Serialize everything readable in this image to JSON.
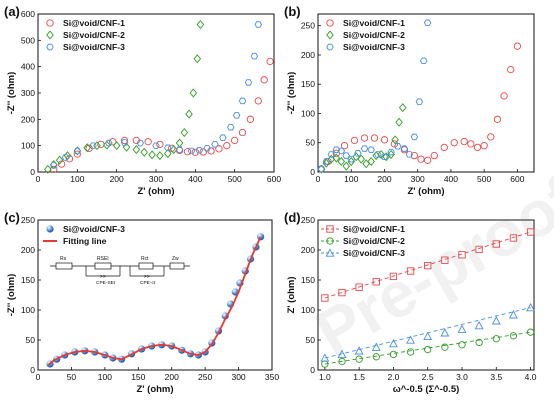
{
  "watermark": "Pre-proofs",
  "colors": {
    "red": "#e8474a",
    "green": "#2e9e22",
    "blue": "#4a90e2",
    "fit": "#e53935",
    "sphere": "#3c78c8"
  },
  "chart_data": [
    {
      "panel": "a",
      "panel_label": "(a)",
      "type": "scatter",
      "xlabel": "Z' (ohm)",
      "ylabel": "-Z'' (ohm)",
      "xlim": [
        0,
        600
      ],
      "ylim": [
        0,
        600
      ],
      "xticks": [
        0,
        100,
        200,
        300,
        400,
        500,
        600
      ],
      "yticks": [
        0,
        100,
        200,
        300,
        400,
        500,
        600
      ],
      "legend": "top-left",
      "series": [
        {
          "name": "Si@void/CNF-1",
          "marker": "circle",
          "color": "#e8474a",
          "x": [
            40,
            60,
            80,
            100,
            130,
            160,
            190,
            220,
            250,
            280,
            310,
            340,
            360,
            380,
            400,
            420,
            440,
            460,
            480,
            500,
            520,
            540,
            560,
            575,
            590
          ],
          "y": [
            10,
            30,
            50,
            68,
            90,
            105,
            115,
            120,
            120,
            115,
            105,
            90,
            82,
            77,
            75,
            76,
            80,
            88,
            100,
            120,
            150,
            200,
            270,
            350,
            420
          ]
        },
        {
          "name": "Si@void/CNF-2",
          "marker": "diamond",
          "color": "#2e9e22",
          "x": [
            25,
            40,
            55,
            75,
            100,
            125,
            150,
            175,
            200,
            225,
            250,
            270,
            290,
            310,
            330,
            345,
            360,
            372,
            384,
            395,
            405,
            413
          ],
          "y": [
            10,
            28,
            45,
            62,
            80,
            92,
            100,
            102,
            100,
            94,
            85,
            75,
            65,
            62,
            70,
            85,
            110,
            150,
            220,
            300,
            430,
            560
          ]
        },
        {
          "name": "Si@void/CNF-3",
          "marker": "hexagon",
          "color": "#4a90e2",
          "x": [
            40,
            70,
            100,
            140,
            180,
            220,
            260,
            300,
            330,
            360,
            390,
            410,
            430,
            450,
            470,
            490,
            505,
            520,
            535,
            550,
            560
          ],
          "y": [
            25,
            55,
            80,
            100,
            110,
            112,
            110,
            100,
            92,
            85,
            80,
            82,
            90,
            105,
            130,
            170,
            215,
            270,
            340,
            440,
            560
          ]
        }
      ]
    },
    {
      "panel": "b",
      "panel_label": "(b)",
      "type": "scatter",
      "xlabel": "Z' (ohm)",
      "ylabel": "-Z'' (ohm)",
      "xlim": [
        0,
        650
      ],
      "ylim": [
        0,
        270
      ],
      "xticks": [
        0,
        100,
        200,
        300,
        400,
        500,
        600
      ],
      "yticks": [
        0,
        50,
        100,
        150,
        200,
        250
      ],
      "legend": "top-left",
      "series": [
        {
          "name": "Si@void/CNF-1",
          "marker": "circle",
          "color": "#e8474a",
          "x": [
            10,
            30,
            55,
            80,
            110,
            140,
            170,
            200,
            230,
            260,
            290,
            310,
            330,
            350,
            380,
            410,
            440,
            460,
            480,
            500,
            520,
            540,
            560,
            580,
            600
          ],
          "y": [
            5,
            18,
            32,
            45,
            54,
            58,
            58,
            55,
            48,
            38,
            28,
            22,
            20,
            28,
            42,
            50,
            52,
            48,
            42,
            45,
            60,
            90,
            130,
            175,
            215
          ]
        },
        {
          "name": "Si@void/CNF-2",
          "marker": "diamond",
          "color": "#2e9e22",
          "x": [
            10,
            25,
            40,
            55,
            70,
            85,
            100,
            115,
            130,
            145,
            160,
            175,
            190,
            205,
            220,
            232,
            244,
            255
          ],
          "y": [
            5,
            15,
            22,
            24,
            18,
            10,
            18,
            26,
            22,
            14,
            18,
            28,
            30,
            26,
            30,
            55,
            85,
            110
          ]
        },
        {
          "name": "Si@void/CNF-3",
          "marker": "hexagon",
          "color": "#4a90e2",
          "x": [
            10,
            25,
            40,
            55,
            70,
            85,
            100,
            120,
            140,
            160,
            180,
            200,
            220,
            240,
            260,
            275,
            290,
            305,
            318,
            330
          ],
          "y": [
            5,
            18,
            30,
            38,
            36,
            28,
            22,
            32,
            40,
            38,
            30,
            26,
            34,
            44,
            40,
            30,
            60,
            120,
            190,
            255
          ]
        }
      ]
    },
    {
      "panel": "c",
      "panel_label": "(c)",
      "type": "scatter",
      "xlabel": "Z' (ohm)",
      "ylabel": "-Z'' (ohm)",
      "xlim": [
        0,
        350
      ],
      "ylim": [
        0,
        250
      ],
      "xticks": [
        0,
        50,
        100,
        150,
        200,
        250,
        300,
        350
      ],
      "yticks": [
        0,
        50,
        100,
        150,
        200,
        250
      ],
      "legend": "top-left",
      "circuit_labels": [
        "Rs",
        "RSEI",
        "CPE-SEI",
        "Rct",
        "CPE-ct",
        "Zw"
      ],
      "series": [
        {
          "name": "Si@void/CNF-3",
          "marker": "sphere",
          "color": "#3c78c8",
          "x": [
            18,
            28,
            40,
            55,
            70,
            85,
            100,
            112,
            125,
            140,
            155,
            170,
            185,
            200,
            215,
            228,
            240,
            250,
            260,
            270,
            280,
            288,
            295,
            302,
            310,
            318,
            326,
            333
          ],
          "y": [
            10,
            18,
            25,
            30,
            32,
            30,
            25,
            20,
            18,
            27,
            35,
            40,
            42,
            40,
            33,
            27,
            25,
            30,
            45,
            65,
            90,
            110,
            130,
            145,
            165,
            185,
            205,
            222
          ]
        },
        {
          "name": "Fitting line",
          "marker": "line",
          "color": "#e53935",
          "x": [
            15,
            25,
            40,
            55,
            70,
            85,
            100,
            112,
            125,
            140,
            155,
            170,
            185,
            200,
            215,
            228,
            240,
            250,
            260,
            270,
            280,
            290,
            300,
            310,
            320,
            333
          ],
          "y": [
            8,
            17,
            25,
            30,
            32,
            30,
            25,
            20,
            18,
            26,
            35,
            40,
            42,
            40,
            33,
            27,
            25,
            30,
            43,
            62,
            85,
            105,
            130,
            160,
            190,
            222
          ]
        }
      ]
    },
    {
      "panel": "d",
      "panel_label": "(d)",
      "type": "line",
      "xlabel": "ω^-0.5 (Σ^-0.5)",
      "ylabel": "Z' (ohm)",
      "xlim": [
        0.9,
        4.05
      ],
      "ylim": [
        0,
        250
      ],
      "xticks": [
        1.0,
        1.5,
        2.0,
        2.5,
        3.0,
        3.5,
        4.0
      ],
      "yticks": [
        0,
        50,
        100,
        150,
        200,
        250
      ],
      "legend": "top-left",
      "series": [
        {
          "name": "Si@void/CNF-1",
          "marker": "square",
          "color": "#e8474a",
          "x": [
            1.0,
            1.25,
            1.5,
            1.75,
            2.0,
            2.25,
            2.5,
            2.75,
            3.0,
            3.25,
            3.5,
            3.75,
            4.0
          ],
          "y": [
            120,
            129,
            138,
            147,
            156,
            165,
            174,
            183,
            192,
            201,
            210,
            220,
            230
          ]
        },
        {
          "name": "Si@void/CNF-2",
          "marker": "circle",
          "color": "#2e9e22",
          "x": [
            1.0,
            1.25,
            1.5,
            1.75,
            2.0,
            2.25,
            2.5,
            2.75,
            3.0,
            3.25,
            3.5,
            3.75,
            4.0
          ],
          "y": [
            10,
            14,
            18,
            22,
            26,
            30,
            34,
            38,
            42,
            46,
            52,
            57,
            63
          ]
        },
        {
          "name": "Si@void/CNF-3",
          "marker": "triangle",
          "color": "#4a90e2",
          "x": [
            1.0,
            1.25,
            1.5,
            1.75,
            2.0,
            2.25,
            2.5,
            2.75,
            3.0,
            3.25,
            3.5,
            3.75,
            4.0
          ],
          "y": [
            20,
            26,
            32,
            38,
            44,
            50,
            56,
            62,
            68,
            74,
            82,
            92,
            104
          ]
        }
      ]
    }
  ]
}
